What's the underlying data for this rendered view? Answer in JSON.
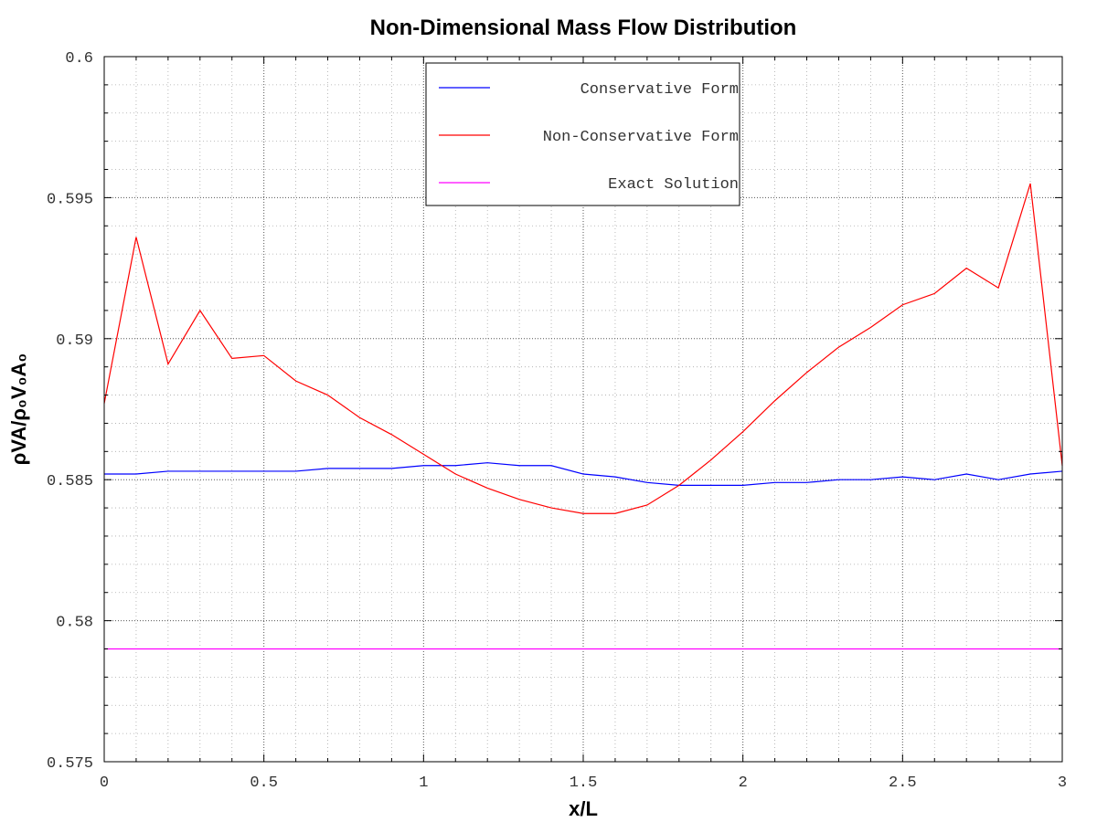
{
  "chart_data": {
    "type": "line",
    "title": "Non-Dimensional Mass Flow Distribution",
    "xlabel": "x/L",
    "ylabel": "ρVA/ρ₀V₀A₀",
    "xlim": [
      0,
      3
    ],
    "ylim": [
      0.575,
      0.6
    ],
    "x_ticks": [
      0,
      0.5,
      1,
      1.5,
      2,
      2.5,
      3
    ],
    "x_tick_labels": [
      "0",
      "0.5",
      "1",
      "1.5",
      "2",
      "2.5",
      "3"
    ],
    "y_ticks": [
      0.575,
      0.58,
      0.585,
      0.59,
      0.595,
      0.6
    ],
    "y_tick_labels": [
      "0.575",
      "0.58",
      "0.585",
      "0.59",
      "0.595",
      "0.6"
    ],
    "grid": true,
    "legend_position": "top-center",
    "x": [
      0,
      0.1,
      0.2,
      0.3,
      0.4,
      0.5,
      0.6,
      0.7,
      0.8,
      0.9,
      1.0,
      1.1,
      1.2,
      1.3,
      1.4,
      1.5,
      1.6,
      1.7,
      1.8,
      1.9,
      2.0,
      2.1,
      2.2,
      2.3,
      2.4,
      2.5,
      2.6,
      2.7,
      2.8,
      2.9,
      3.0
    ],
    "series": [
      {
        "name": "Conservative Form",
        "color": "#0000ff",
        "values": [
          0.5852,
          0.5852,
          0.5853,
          0.5853,
          0.5853,
          0.5853,
          0.5853,
          0.5854,
          0.5854,
          0.5854,
          0.5855,
          0.5855,
          0.5856,
          0.5855,
          0.5855,
          0.5852,
          0.5851,
          0.5849,
          0.5848,
          0.5848,
          0.5848,
          0.5849,
          0.5849,
          0.585,
          0.585,
          0.5851,
          0.585,
          0.5852,
          0.585,
          0.5852,
          0.5853
        ]
      },
      {
        "name": "Non-Conservative Form",
        "color": "#ff0000",
        "values": [
          0.5877,
          0.5936,
          0.5891,
          0.591,
          0.5893,
          0.5894,
          0.5885,
          0.588,
          0.5872,
          0.5866,
          0.5859,
          0.5852,
          0.5847,
          0.5843,
          0.584,
          0.5838,
          0.5838,
          0.5841,
          0.5848,
          0.5857,
          0.5867,
          0.5878,
          0.5888,
          0.5897,
          0.5904,
          0.5912,
          0.5916,
          0.5925,
          0.5918,
          0.5955,
          0.5855
        ]
      },
      {
        "name": "Exact Solution",
        "color": "#ff00ff",
        "values": [
          0.579,
          0.579,
          0.579,
          0.579,
          0.579,
          0.579,
          0.579,
          0.579,
          0.579,
          0.579,
          0.579,
          0.579,
          0.579,
          0.579,
          0.579,
          0.579,
          0.579,
          0.579,
          0.579,
          0.579,
          0.579,
          0.579,
          0.579,
          0.579,
          0.579,
          0.579,
          0.579,
          0.579,
          0.579,
          0.579,
          0.579
        ]
      }
    ]
  }
}
